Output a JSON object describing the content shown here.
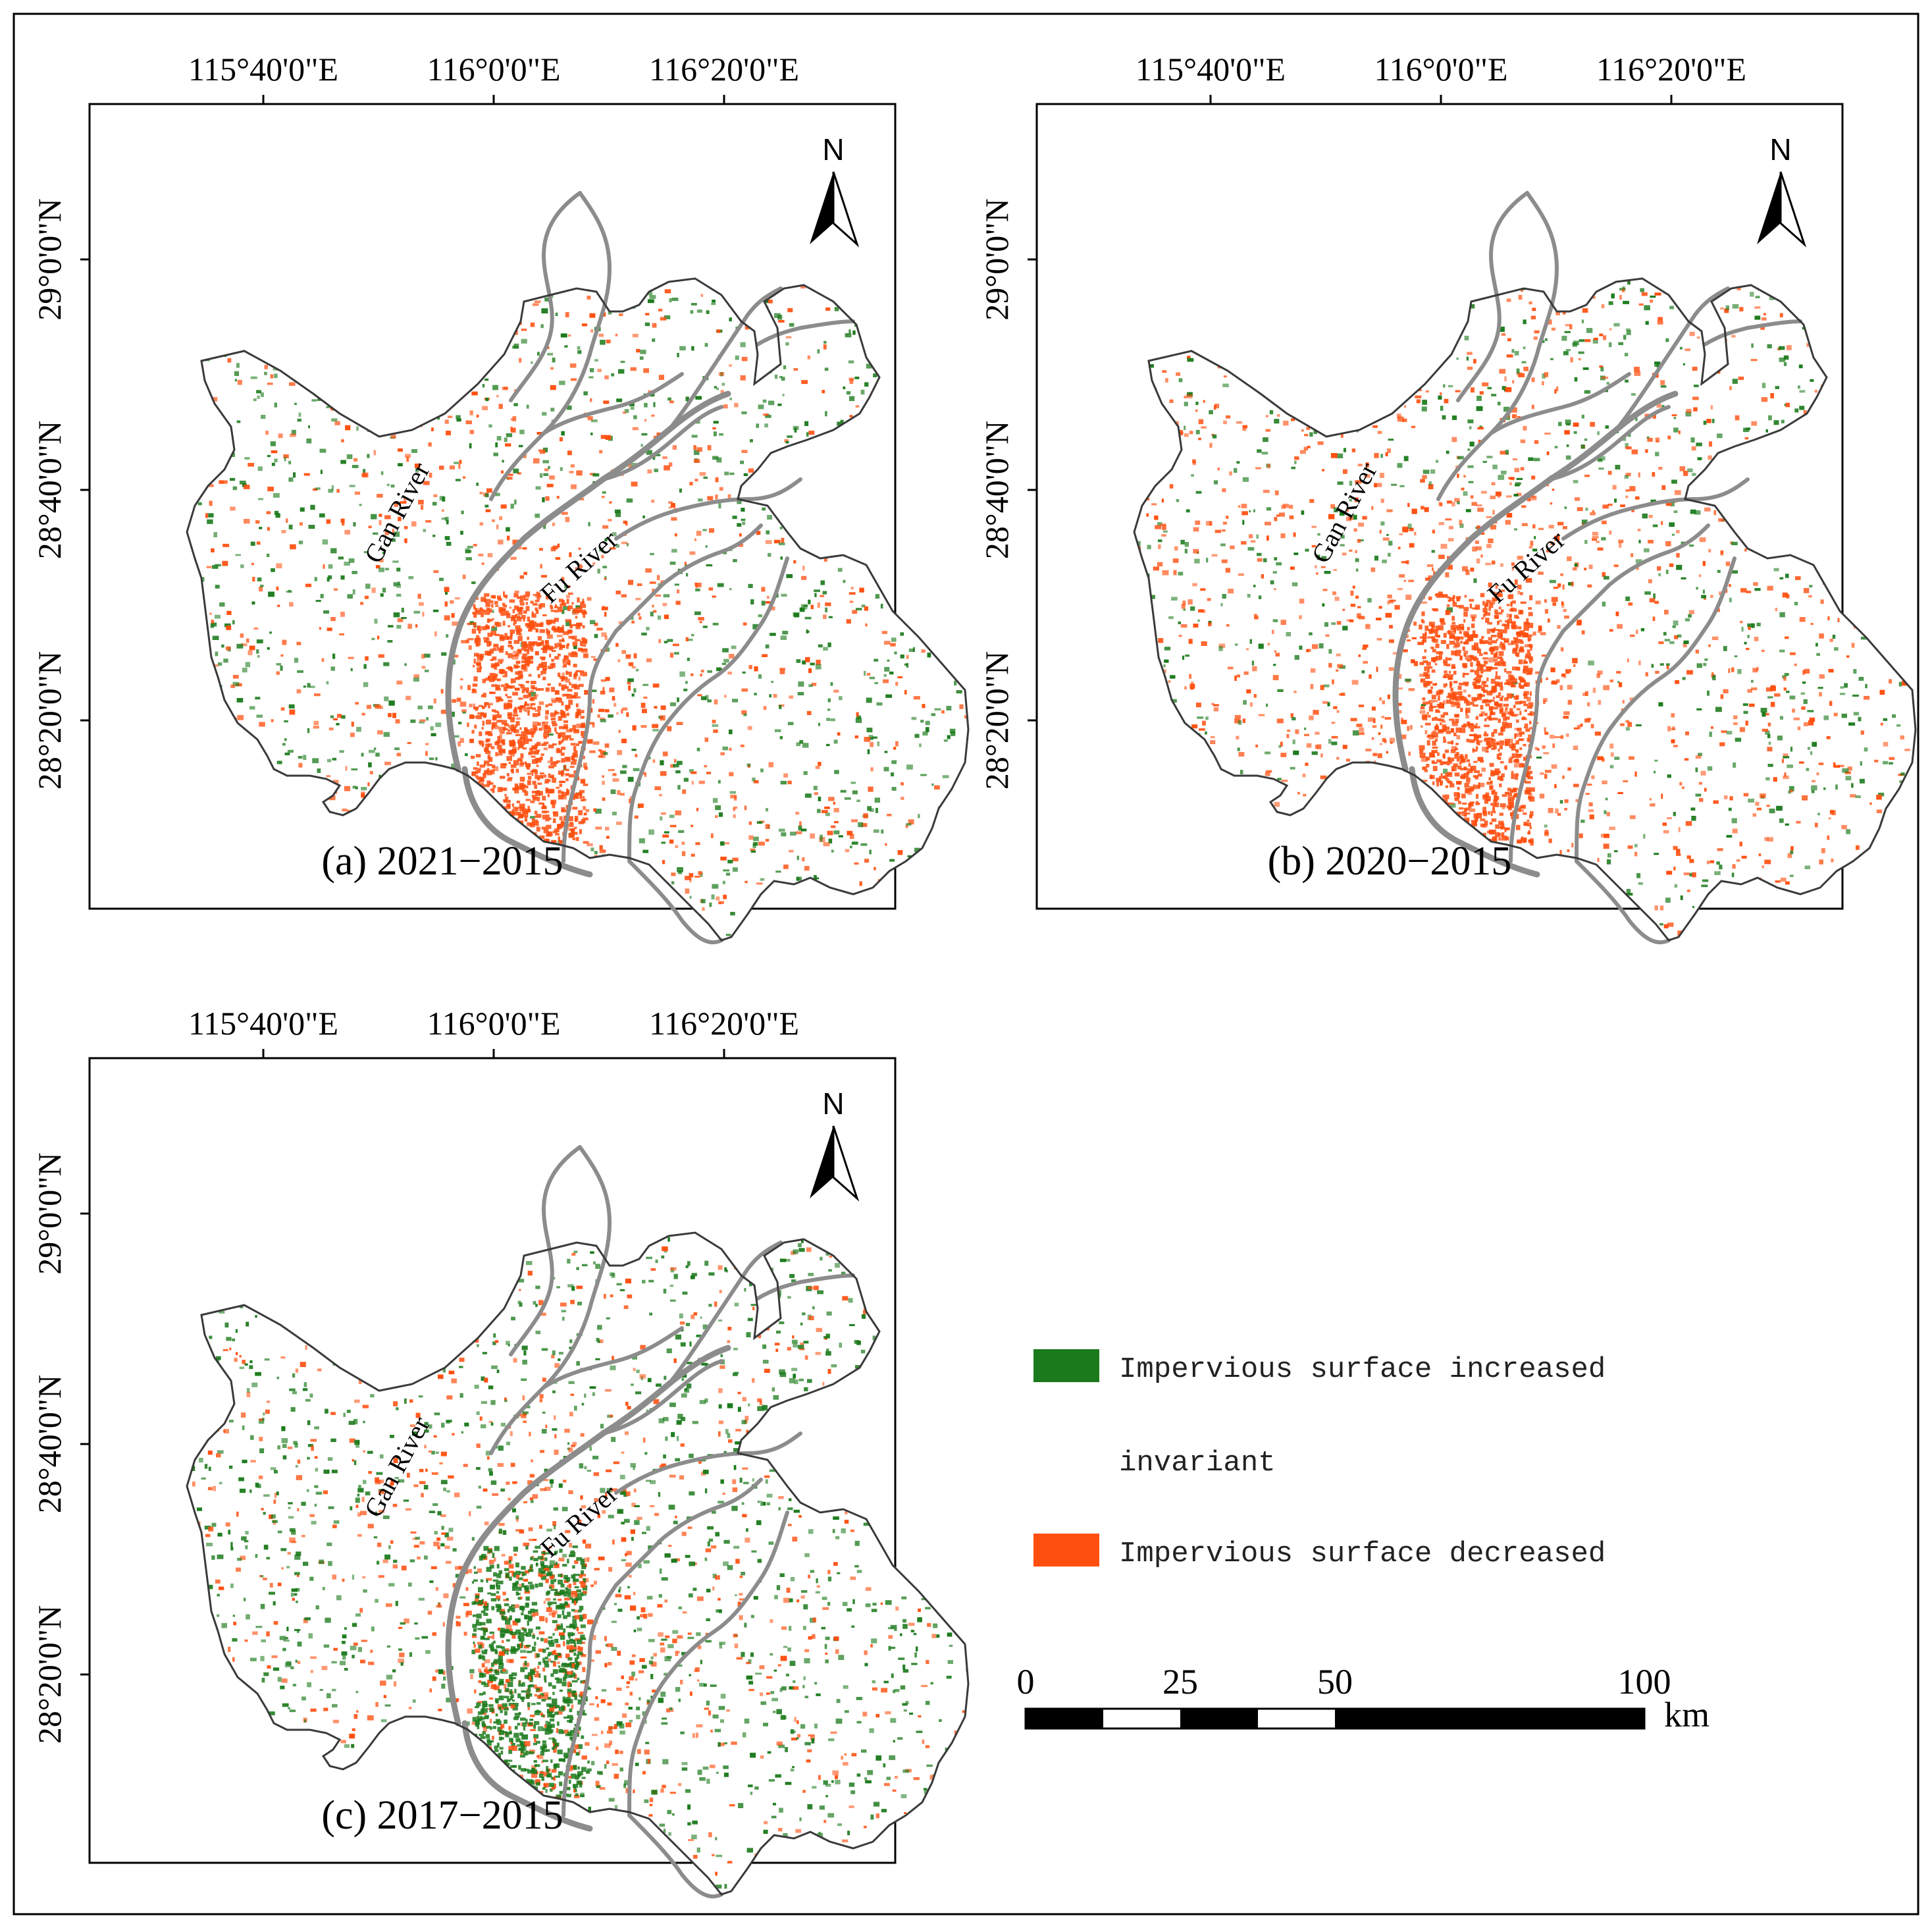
{
  "colors": {
    "increased": "#1b7a1b",
    "decreased": "#ff4f0f",
    "invariant": "#ffffff",
    "river": "#8c8c8c",
    "boundary": "#3a3a3a",
    "frame": "#000000"
  },
  "lon_labels": [
    "115°40'0\"E",
    "116°0'0\"E",
    "116°20'0\"E"
  ],
  "lat_labels": [
    "29°0'0\"N",
    "28°40'0\"N",
    "28°20'0\"N"
  ],
  "north_label": "N",
  "rivers": {
    "gan": "Gan River",
    "fu": "Fu River"
  },
  "panels": [
    {
      "caption": "(a) 2021−2015",
      "increase_share": 0.45,
      "decrease_share": 0.55
    },
    {
      "caption": "(b) 2020−2015",
      "increase_share": 0.3,
      "decrease_share": 0.7
    },
    {
      "caption": "(c) 2017−2015",
      "increase_share": 0.55,
      "decrease_share": 0.45
    }
  ],
  "legend": {
    "items": [
      {
        "label": "Impervious surface increased",
        "color": "#1b7a1b"
      },
      {
        "label": "invariant",
        "color": "#ffffff"
      },
      {
        "label": "Impervious surface decreased",
        "color": "#ff4f0f"
      }
    ]
  },
  "scalebar": {
    "ticks": [
      "0",
      "25",
      "50",
      "100"
    ],
    "tick_values_km": [
      0,
      25,
      50,
      100
    ],
    "unit": "km"
  }
}
